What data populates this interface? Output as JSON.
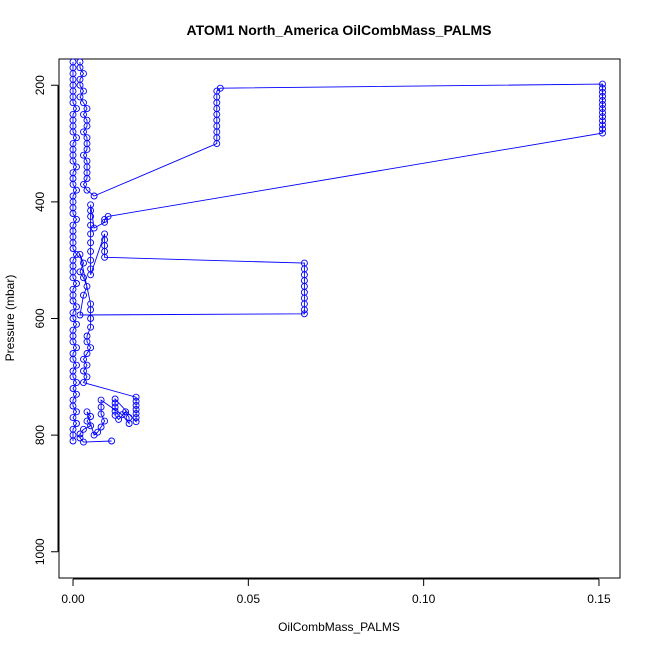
{
  "chart_data": {
    "type": "scatter",
    "title": "ATOM1 North_America OilCombMass_PALMS",
    "xlabel": "OilCombMass_PALMS",
    "ylabel": "Pressure (mbar)",
    "xlim": [
      -0.004,
      0.156
    ],
    "ylim": [
      1045,
      155
    ],
    "y_reversed": true,
    "grid": false,
    "legend": "none",
    "x_ticks": [
      0.0,
      0.05,
      0.1,
      0.15
    ],
    "x_tick_labels": [
      "0.00",
      "0.05",
      "0.10",
      "0.15"
    ],
    "y_ticks": [
      200,
      400,
      600,
      800,
      1000
    ],
    "y_tick_labels": [
      "200",
      "400",
      "600",
      "800",
      "1000"
    ],
    "color": "#0000ff",
    "series": [
      {
        "points": [
          [
            0.0,
            810
          ],
          [
            0.0,
            800
          ],
          [
            0.0,
            790
          ],
          [
            0.001,
            780
          ],
          [
            0.0,
            770
          ],
          [
            0.001,
            760
          ],
          [
            0.0,
            750
          ],
          [
            0.0,
            740
          ],
          [
            0.001,
            730
          ],
          [
            0.0,
            720
          ],
          [
            0.001,
            710
          ],
          [
            0.0,
            700
          ],
          [
            0.0,
            690
          ],
          [
            0.001,
            680
          ],
          [
            0.0,
            670
          ],
          [
            0.0,
            660
          ],
          [
            0.001,
            650
          ],
          [
            0.0,
            640
          ],
          [
            0.0,
            630
          ],
          [
            0.0,
            620
          ],
          [
            0.001,
            610
          ],
          [
            0.0,
            600
          ],
          [
            0.0,
            590
          ],
          [
            0.001,
            580
          ],
          [
            0.0,
            570
          ],
          [
            0.0,
            560
          ],
          [
            0.0,
            550
          ],
          [
            0.001,
            540
          ],
          [
            0.0,
            530
          ],
          [
            0.0,
            520
          ],
          [
            0.0,
            510
          ],
          [
            0.0,
            500
          ],
          [
            0.001,
            490
          ],
          [
            0.0,
            480
          ],
          [
            0.0,
            470
          ],
          [
            0.0,
            460
          ],
          [
            0.0,
            450
          ],
          [
            0.0,
            440
          ],
          [
            0.001,
            430
          ],
          [
            0.0,
            420
          ],
          [
            0.0,
            410
          ],
          [
            0.0,
            400
          ],
          [
            0.0,
            390
          ],
          [
            0.001,
            380
          ],
          [
            0.0,
            370
          ],
          [
            0.0,
            360
          ],
          [
            0.0,
            350
          ],
          [
            0.001,
            340
          ],
          [
            0.0,
            330
          ],
          [
            0.0,
            320
          ],
          [
            0.0,
            310
          ],
          [
            0.0,
            300
          ],
          [
            0.001,
            290
          ],
          [
            0.0,
            280
          ],
          [
            0.0,
            270
          ],
          [
            0.0,
            260
          ],
          [
            0.0,
            250
          ],
          [
            0.001,
            240
          ],
          [
            0.0,
            230
          ],
          [
            0.0,
            220
          ],
          [
            0.0,
            210
          ],
          [
            0.0,
            200
          ],
          [
            0.0,
            190
          ],
          [
            0.0,
            180
          ],
          [
            0.0,
            170
          ],
          [
            0.0,
            160
          ]
        ]
      },
      {
        "points": [
          [
            0.002,
            160
          ],
          [
            0.002,
            170
          ],
          [
            0.003,
            180
          ],
          [
            0.002,
            190
          ],
          [
            0.002,
            200
          ],
          [
            0.003,
            210
          ],
          [
            0.002,
            220
          ],
          [
            0.003,
            230
          ],
          [
            0.004,
            240
          ],
          [
            0.003,
            250
          ],
          [
            0.004,
            260
          ],
          [
            0.004,
            270
          ],
          [
            0.003,
            280
          ],
          [
            0.004,
            290
          ],
          [
            0.004,
            300
          ],
          [
            0.004,
            310
          ],
          [
            0.003,
            320
          ],
          [
            0.004,
            330
          ],
          [
            0.004,
            340
          ],
          [
            0.004,
            350
          ],
          [
            0.004,
            360
          ],
          [
            0.003,
            370
          ],
          [
            0.004,
            380
          ],
          [
            0.006,
            390
          ],
          [
            0.041,
            300
          ],
          [
            0.041,
            290
          ],
          [
            0.041,
            280
          ],
          [
            0.041,
            270
          ],
          [
            0.041,
            260
          ],
          [
            0.041,
            250
          ],
          [
            0.041,
            240
          ],
          [
            0.041,
            230
          ],
          [
            0.041,
            220
          ],
          [
            0.041,
            210
          ],
          [
            0.042,
            205
          ],
          [
            0.151,
            198
          ],
          [
            0.151,
            205
          ],
          [
            0.151,
            212
          ],
          [
            0.151,
            219
          ],
          [
            0.151,
            226
          ],
          [
            0.151,
            233
          ],
          [
            0.151,
            240
          ],
          [
            0.151,
            247
          ],
          [
            0.151,
            254
          ],
          [
            0.151,
            261
          ],
          [
            0.151,
            268
          ],
          [
            0.151,
            275
          ],
          [
            0.151,
            282
          ],
          [
            0.01,
            425
          ],
          [
            0.009,
            430
          ],
          [
            0.009,
            435
          ],
          [
            0.006,
            445
          ],
          [
            0.005,
            405
          ],
          [
            0.005,
            415
          ],
          [
            0.005,
            425
          ],
          [
            0.005,
            440
          ],
          [
            0.005,
            455
          ],
          [
            0.005,
            470
          ],
          [
            0.005,
            485
          ],
          [
            0.005,
            500
          ],
          [
            0.005,
            515
          ],
          [
            0.005,
            525
          ],
          [
            0.009,
            455
          ],
          [
            0.009,
            465
          ],
          [
            0.009,
            475
          ],
          [
            0.009,
            485
          ],
          [
            0.009,
            495
          ],
          [
            0.066,
            505
          ],
          [
            0.066,
            515
          ],
          [
            0.066,
            525
          ],
          [
            0.066,
            535
          ],
          [
            0.066,
            545
          ],
          [
            0.066,
            555
          ],
          [
            0.066,
            565
          ],
          [
            0.066,
            575
          ],
          [
            0.066,
            585
          ],
          [
            0.066,
            592
          ],
          [
            0.002,
            594
          ],
          [
            0.003,
            560
          ],
          [
            0.004,
            545
          ],
          [
            0.003,
            530
          ],
          [
            0.002,
            520
          ],
          [
            0.003,
            505
          ],
          [
            0.002,
            490
          ],
          [
            0.005,
            575
          ],
          [
            0.005,
            585
          ],
          [
            0.005,
            600
          ],
          [
            0.005,
            615
          ],
          [
            0.004,
            630
          ],
          [
            0.004,
            640
          ],
          [
            0.005,
            650
          ],
          [
            0.004,
            660
          ],
          [
            0.003,
            670
          ],
          [
            0.004,
            680
          ],
          [
            0.003,
            690
          ],
          [
            0.004,
            700
          ],
          [
            0.003,
            710
          ],
          [
            0.018,
            735
          ],
          [
            0.018,
            742
          ],
          [
            0.018,
            749
          ],
          [
            0.018,
            756
          ],
          [
            0.018,
            763
          ],
          [
            0.018,
            770
          ],
          [
            0.018,
            777
          ],
          [
            0.012,
            738
          ],
          [
            0.012,
            745
          ],
          [
            0.012,
            752
          ],
          [
            0.012,
            759
          ],
          [
            0.012,
            766
          ],
          [
            0.013,
            773
          ],
          [
            0.015,
            760
          ],
          [
            0.016,
            770
          ],
          [
            0.016,
            780
          ],
          [
            0.014,
            765
          ],
          [
            0.008,
            740
          ],
          [
            0.008,
            752
          ],
          [
            0.008,
            764
          ],
          [
            0.009,
            776
          ],
          [
            0.008,
            786
          ],
          [
            0.007,
            795
          ],
          [
            0.006,
            800
          ],
          [
            0.004,
            760
          ],
          [
            0.005,
            768
          ],
          [
            0.004,
            776
          ],
          [
            0.005,
            784
          ],
          [
            0.003,
            790
          ],
          [
            0.002,
            798
          ],
          [
            0.002,
            805
          ],
          [
            0.003,
            812
          ],
          [
            0.011,
            810
          ]
        ]
      }
    ]
  }
}
